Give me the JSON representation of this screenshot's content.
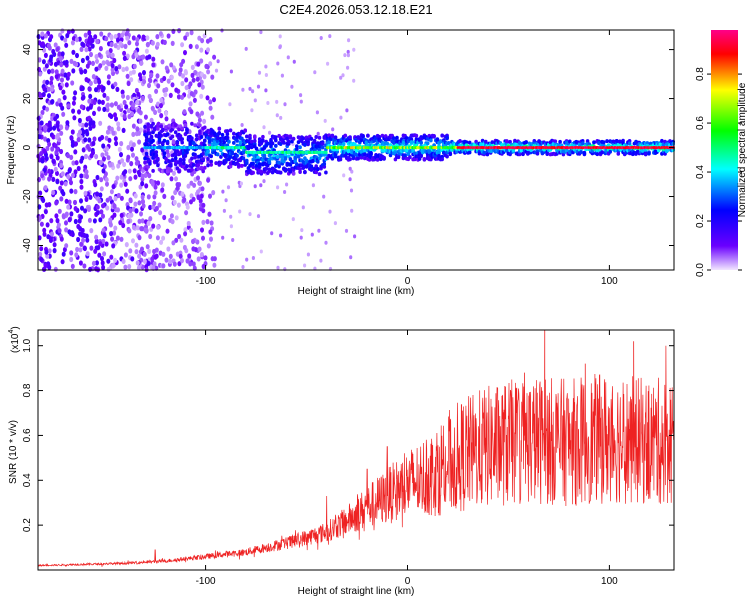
{
  "title": "C2E4.2026.053.12.18.E21",
  "chart_data": [
    {
      "type": "heatmap",
      "name": "spectrogram",
      "xlabel": "Height of straight line (km)",
      "ylabel": "Frequency (Hz)",
      "xlim": [
        -183,
        132
      ],
      "ylim": [
        -50,
        48
      ],
      "xticks": [
        -100,
        0,
        100
      ],
      "yticks": [
        -40,
        -20,
        0,
        20,
        40
      ],
      "grid": false,
      "colorbar": {
        "label": "Normalized spectral amplitude",
        "range": [
          0,
          0.98
        ],
        "ticks": [
          0.0,
          0.2,
          0.4,
          0.6,
          0.8
        ],
        "tick_labels": [
          "0.0",
          "0.2",
          "0.4",
          "0.6",
          "0.8"
        ],
        "colormap": [
          "#f2e6ff",
          "#6a00ff",
          "#0000ff",
          "#00ffff",
          "#00ff00",
          "#ffff00",
          "#ff0000",
          "#ff00aa"
        ]
      },
      "description": "Scattered low-amplitude points below -100 km; energy concentrates into a narrow band near 0 Hz toward higher heights, reaching maximum amplitude (~0.95) above ~25 km"
    },
    {
      "type": "line",
      "name": "snr",
      "xlabel": "Height of straight line (km)",
      "ylabel": "SNR (10 * v/v)",
      "y_multiplier_label": "(x10",
      "y_multiplier_exp": "4",
      "y_multiplier_close": ")",
      "xlim": [
        -183,
        132
      ],
      "ylim": [
        0,
        1.07
      ],
      "xticks": [
        -100,
        0,
        100
      ],
      "yticks": [
        0.2,
        0.4,
        0.6,
        0.8,
        1.0
      ],
      "ytick_labels": [
        "0.2",
        "0.4",
        "0.6",
        "0.8",
        "1.0"
      ],
      "color": "#ee2222",
      "grid": false,
      "trend": {
        "x": [
          -183,
          -140,
          -120,
          -100,
          -80,
          -60,
          -40,
          -30,
          -20,
          -10,
          0,
          10,
          20,
          30,
          40,
          60,
          80,
          100,
          120,
          132
        ],
        "y": [
          0.02,
          0.03,
          0.04,
          0.06,
          0.08,
          0.12,
          0.17,
          0.22,
          0.28,
          0.33,
          0.38,
          0.42,
          0.48,
          0.52,
          0.55,
          0.58,
          0.57,
          0.59,
          0.57,
          0.58
        ]
      },
      "peaks": [
        {
          "x": -125,
          "y": 0.09
        },
        {
          "x": -40,
          "y": 0.33
        },
        {
          "x": -20,
          "y": 0.45
        },
        {
          "x": -10,
          "y": 0.55
        },
        {
          "x": 58,
          "y": 0.88
        },
        {
          "x": 68,
          "y": 1.07
        },
        {
          "x": 88,
          "y": 0.92
        },
        {
          "x": 112,
          "y": 1.02
        },
        {
          "x": 128,
          "y": 1.0
        }
      ]
    }
  ]
}
